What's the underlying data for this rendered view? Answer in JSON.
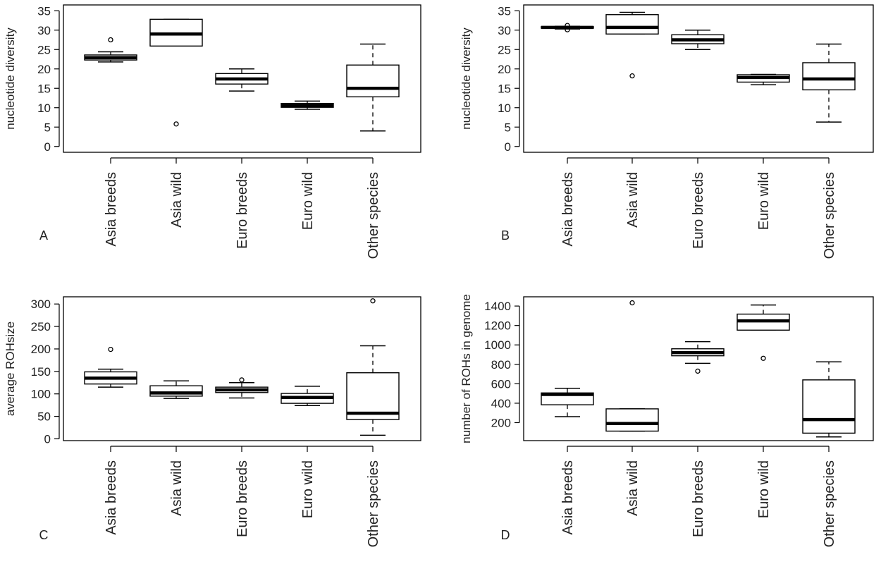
{
  "figure": {
    "panels": [
      "A",
      "B",
      "C",
      "D"
    ]
  },
  "chart_data": [
    {
      "panel": "A",
      "type": "box",
      "categories": [
        "Asia breeds",
        "Asia wild",
        "Euro breeds",
        "Euro wild",
        "Other species"
      ],
      "ylabel": "nucleotide diversity",
      "ylim": [
        -1.5,
        36.5
      ],
      "yticks": [
        0,
        5,
        10,
        15,
        20,
        25,
        30,
        35
      ],
      "grid": false,
      "boxes": [
        {
          "min": 21.8,
          "q1": 22.3,
          "median": 22.9,
          "q3": 23.6,
          "max": 24.4,
          "outliers": [
            27.5
          ]
        },
        {
          "min": 25.9,
          "q1": 25.9,
          "median": 29.0,
          "q3": 32.8,
          "max": 32.8,
          "outliers": [
            5.8
          ]
        },
        {
          "min": 14.3,
          "q1": 16.1,
          "median": 17.4,
          "q3": 18.8,
          "max": 20.0,
          "outliers": []
        },
        {
          "min": 9.6,
          "q1": 10.1,
          "median": 10.6,
          "q3": 11.1,
          "max": 11.7,
          "outliers": []
        },
        {
          "min": 4.0,
          "q1": 12.8,
          "median": 15.0,
          "q3": 21.0,
          "max": 26.4,
          "outliers": []
        }
      ]
    },
    {
      "panel": "B",
      "type": "box",
      "categories": [
        "Asia breeds",
        "Asia wild",
        "Euro breeds",
        "Euro wild",
        "Other species"
      ],
      "ylabel": "nucleotide diversity",
      "ylim": [
        -1.5,
        36.5
      ],
      "yticks": [
        0,
        5,
        10,
        15,
        20,
        25,
        30,
        35
      ],
      "grid": false,
      "boxes": [
        {
          "min": 30.3,
          "q1": 30.5,
          "median": 30.7,
          "q3": 30.9,
          "max": 31.0,
          "outliers": [
            30.1,
            31.2
          ]
        },
        {
          "min": 29.0,
          "q1": 29.0,
          "median": 30.7,
          "q3": 34.0,
          "max": 34.6,
          "outliers": [
            18.2
          ]
        },
        {
          "min": 25.0,
          "q1": 26.5,
          "median": 27.5,
          "q3": 28.8,
          "max": 30.0,
          "outliers": []
        },
        {
          "min": 15.9,
          "q1": 16.6,
          "median": 17.8,
          "q3": 18.5,
          "max": 18.6,
          "outliers": []
        },
        {
          "min": 6.3,
          "q1": 14.6,
          "median": 17.4,
          "q3": 21.6,
          "max": 26.4,
          "outliers": []
        }
      ]
    },
    {
      "panel": "C",
      "type": "box",
      "categories": [
        "Asia breeds",
        "Asia wild",
        "Euro breeds",
        "Euro wild",
        "Other species"
      ],
      "ylabel": "average ROHsize",
      "ylim": [
        -4,
        316
      ],
      "yticks": [
        0,
        50,
        100,
        150,
        200,
        250,
        300
      ],
      "grid": false,
      "boxes": [
        {
          "min": 115,
          "q1": 122,
          "median": 135,
          "q3": 149,
          "max": 155,
          "outliers": [
            199
          ]
        },
        {
          "min": 90,
          "q1": 95,
          "median": 102,
          "q3": 118,
          "max": 129,
          "outliers": []
        },
        {
          "min": 91,
          "q1": 103,
          "median": 109,
          "q3": 115,
          "max": 125,
          "outliers": [
            131
          ]
        },
        {
          "min": 74,
          "q1": 79,
          "median": 92,
          "q3": 101,
          "max": 117,
          "outliers": []
        },
        {
          "min": 8,
          "q1": 43,
          "median": 57,
          "q3": 147,
          "max": 207,
          "outliers": [
            307
          ]
        }
      ]
    },
    {
      "panel": "D",
      "type": "box",
      "categories": [
        "Asia breeds",
        "Asia wild",
        "Euro breeds",
        "Euro wild",
        "Other species"
      ],
      "ylabel": "number of ROHs in genome",
      "ylim": [
        15,
        1495
      ],
      "yticks": [
        200,
        400,
        600,
        800,
        1000,
        1200,
        1400
      ],
      "grid": false,
      "boxes": [
        {
          "min": 262,
          "q1": 384,
          "median": 490,
          "q3": 506,
          "max": 554,
          "outliers": []
        },
        {
          "min": 113,
          "q1": 113,
          "median": 191,
          "q3": 342,
          "max": 342,
          "outliers": [
            1433
          ]
        },
        {
          "min": 810,
          "q1": 888,
          "median": 921,
          "q3": 960,
          "max": 1033,
          "outliers": [
            730
          ]
        },
        {
          "min": 1152,
          "q1": 1152,
          "median": 1247,
          "q3": 1317,
          "max": 1411,
          "outliers": [
            862
          ]
        },
        {
          "min": 53,
          "q1": 92,
          "median": 232,
          "q3": 640,
          "max": 826,
          "outliers": []
        }
      ]
    }
  ]
}
